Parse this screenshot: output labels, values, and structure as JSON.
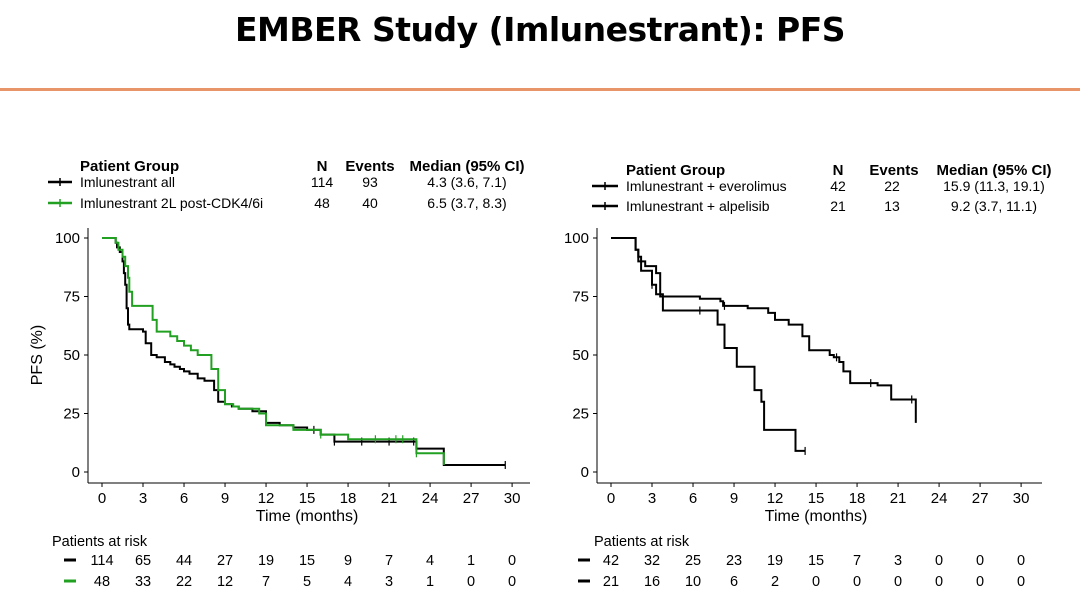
{
  "slide": {
    "title": "EMBER Study (Imlunestrant): PFS"
  },
  "chart_data": [
    {
      "type": "line",
      "subtype": "kaplan-meier",
      "xlabel": "Time (months)",
      "ylabel": "PFS (%)",
      "xlim": [
        0,
        30
      ],
      "ylim": [
        0,
        100
      ],
      "x_ticks": [
        "0",
        "3",
        "6",
        "9",
        "12",
        "15",
        "18",
        "21",
        "24",
        "27",
        "30"
      ],
      "y_ticks": [
        "0",
        "25",
        "50",
        "75",
        "100"
      ],
      "grid": false,
      "legend_position": "top",
      "table_headers": {
        "group": "Patient Group",
        "n": "N",
        "events": "Events",
        "median": "Median (95% CI)"
      },
      "series": [
        {
          "name": "Imlunestrant all",
          "n": "114",
          "events": "93",
          "median": "4.3 (3.6, 7.1)",
          "color": "#000000",
          "x": [
            0,
            1.0,
            1.1,
            1.3,
            1.5,
            1.6,
            1.7,
            1.8,
            1.9,
            2.0,
            3.0,
            3.2,
            3.6,
            4.0,
            4.6,
            5.0,
            5.3,
            5.7,
            6.0,
            6.4,
            7.0,
            7.5,
            8.2,
            8.5,
            9.0,
            9.5,
            10.0,
            11.0,
            12.0,
            13.0,
            14.0,
            15.0,
            16.0,
            17.0,
            20.0,
            23.0,
            25.0,
            29.5
          ],
          "y": [
            100,
            98,
            96,
            94,
            90,
            85,
            80,
            70,
            63,
            61,
            60,
            55,
            50,
            49,
            47,
            46,
            45,
            44,
            43,
            42,
            40,
            39,
            35,
            30,
            29,
            28,
            27,
            26,
            21,
            20,
            19,
            18,
            16,
            13,
            13,
            10,
            3,
            3
          ],
          "censor_x": [
            15.5,
            17.0,
            19.0,
            21.0,
            22.8,
            29.5
          ],
          "risk": [
            "114",
            "65",
            "44",
            "27",
            "19",
            "15",
            "9",
            "7",
            "4",
            "1",
            "0"
          ]
        },
        {
          "name": "Imlunestrant 2L post-CDK4/6i",
          "n": "48",
          "events": "40",
          "median": "6.5 (3.7, 8.3)",
          "color": "#22A022",
          "x": [
            0,
            1.0,
            1.2,
            1.5,
            1.7,
            1.9,
            2.0,
            2.2,
            3.5,
            3.7,
            4.0,
            5.0,
            5.5,
            6.0,
            6.5,
            7.0,
            8.0,
            8.5,
            9.0,
            9.6,
            10.0,
            11.0,
            11.5,
            12.0,
            14.0,
            16.0,
            18.0,
            20.0,
            22.0,
            23.0,
            25.0
          ],
          "y": [
            100,
            98,
            95,
            92,
            88,
            83,
            77,
            71,
            71,
            65,
            60,
            58,
            56,
            54,
            52,
            50,
            44,
            35,
            29,
            28,
            27,
            27,
            25,
            20,
            18,
            16,
            14,
            14,
            14,
            8,
            3
          ],
          "censor_x": [
            16.0,
            20.0,
            21.5,
            22.0,
            23.0
          ],
          "risk": [
            "48",
            "33",
            "22",
            "12",
            "7",
            "5",
            "4",
            "3",
            "1",
            "0",
            "0"
          ]
        }
      ],
      "risk_table_title": "Patients at risk"
    },
    {
      "type": "line",
      "subtype": "kaplan-meier",
      "xlabel": "Time (months)",
      "ylabel": "",
      "xlim": [
        0,
        30
      ],
      "ylim": [
        0,
        100
      ],
      "x_ticks": [
        "0",
        "3",
        "6",
        "9",
        "12",
        "15",
        "18",
        "21",
        "24",
        "27",
        "30"
      ],
      "y_ticks": [
        "0",
        "25",
        "50",
        "75",
        "100"
      ],
      "grid": false,
      "legend_position": "top",
      "table_headers": {
        "group": "Patient Group",
        "n": "N",
        "events": "Events",
        "median": "Median (95% CI)"
      },
      "series": [
        {
          "name": "Imlunestrant + everolimus",
          "n": "42",
          "events": "22",
          "median": "15.9 (11.3, 19.1)",
          "color": "#000000",
          "x": [
            0,
            1.8,
            2.0,
            2.2,
            2.5,
            3.3,
            3.6,
            6.5,
            8.0,
            8.2,
            9.5,
            10.0,
            11.0,
            11.5,
            12.0,
            13.0,
            14.0,
            14.5,
            16.0,
            16.3,
            16.7,
            17.0,
            17.5,
            18.5,
            19.5,
            20.5,
            21.5,
            22.0,
            22.3
          ],
          "y": [
            100,
            95,
            92,
            90,
            88,
            85,
            75,
            74,
            73,
            71,
            71,
            70,
            70,
            68,
            65,
            63,
            58,
            52,
            50,
            49,
            47,
            43,
            38,
            38,
            37,
            31,
            31,
            31,
            21
          ],
          "censor_x": [
            8.3,
            16.5,
            19.0,
            22.0
          ],
          "risk": [
            "42",
            "32",
            "25",
            "23",
            "19",
            "15",
            "7",
            "3",
            "0",
            "0",
            "0"
          ]
        },
        {
          "name": "Imlunestrant + alpelisib",
          "n": "21",
          "events": "13",
          "median": "9.2 (3.7, 11.1)",
          "color": "#000000",
          "x": [
            0,
            1.8,
            2.0,
            2.2,
            3.0,
            3.3,
            3.8,
            7.8,
            8.3,
            9.2,
            10.5,
            11.0,
            11.2,
            13.5,
            14.2
          ],
          "y": [
            100,
            95,
            90,
            86,
            80,
            76,
            69,
            63,
            53,
            45,
            35,
            30,
            18,
            9,
            9
          ],
          "censor_x": [
            3.0,
            6.5,
            14.2
          ],
          "risk": [
            "21",
            "16",
            "10",
            "6",
            "2",
            "0",
            "0",
            "0",
            "0",
            "0",
            "0"
          ]
        }
      ],
      "risk_table_title": "Patients at risk"
    }
  ]
}
